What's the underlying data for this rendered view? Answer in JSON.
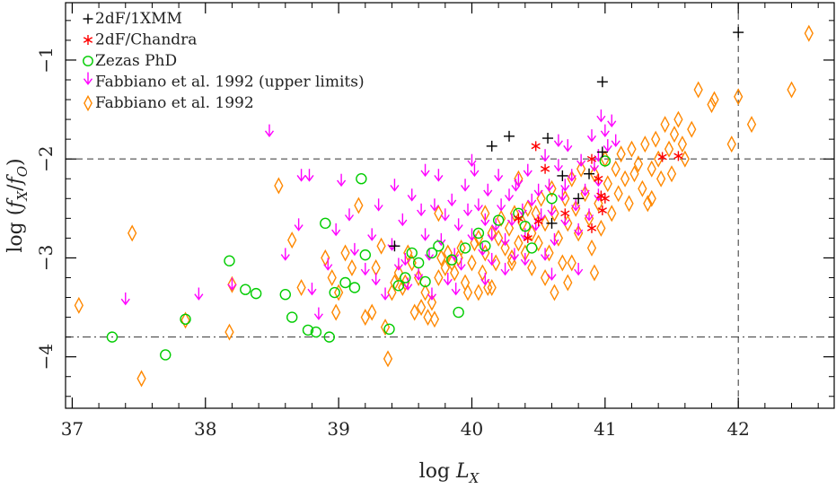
{
  "chart_data": {
    "type": "scatter",
    "xlabel": "log L_X",
    "ylabel": "log (f_X/f_O)",
    "xlim": [
      36.95,
      42.72
    ],
    "ylim": [
      -4.52,
      -0.42
    ],
    "xticks": [
      37,
      38,
      39,
      40,
      41,
      42
    ],
    "yticks": [
      -1,
      -2,
      -3,
      -4
    ],
    "grid": false,
    "legend_position": "top-left",
    "reference_lines": [
      {
        "orientation": "horizontal",
        "value": -2,
        "style": "dashed"
      },
      {
        "orientation": "horizontal",
        "value": -3.8,
        "style": "dash-dot"
      },
      {
        "orientation": "vertical",
        "value": 42,
        "style": "dashed"
      }
    ],
    "series": [
      {
        "name": "+2dF/1XMM",
        "legend_label": "+2dF/1XMM",
        "marker": "plus",
        "color": "#000000",
        "points": [
          [
            42.0,
            -0.72
          ],
          [
            40.98,
            -1.22
          ],
          [
            40.15,
            -1.87
          ],
          [
            40.28,
            -1.77
          ],
          [
            40.57,
            -1.79
          ],
          [
            40.68,
            -2.17
          ],
          [
            40.88,
            -2.15
          ],
          [
            40.98,
            -1.93
          ],
          [
            39.42,
            -2.88
          ],
          [
            40.8,
            -2.4
          ],
          [
            40.6,
            -2.65
          ]
        ]
      },
      {
        "name": "2dF/Chandra",
        "legend_label": "*2dF/Chandra",
        "marker": "asterisk",
        "color": "#ff0000",
        "points": [
          [
            40.48,
            -1.87
          ],
          [
            40.55,
            -2.1
          ],
          [
            40.9,
            -2.0
          ],
          [
            40.95,
            -2.2
          ],
          [
            40.97,
            -2.37
          ],
          [
            41.0,
            -2.4
          ],
          [
            40.98,
            -2.52
          ],
          [
            40.9,
            -2.7
          ],
          [
            40.5,
            -2.63
          ],
          [
            40.42,
            -2.8
          ],
          [
            41.43,
            -1.98
          ],
          [
            41.55,
            -1.97
          ],
          [
            40.35,
            -2.6
          ],
          [
            40.7,
            -2.55
          ]
        ]
      },
      {
        "name": "Zezas PhD",
        "legend_label": "Zezas PhD",
        "marker": "circle",
        "color": "#00cc00",
        "points": [
          [
            37.3,
            -3.8
          ],
          [
            37.7,
            -3.98
          ],
          [
            37.85,
            -3.62
          ],
          [
            38.18,
            -3.03
          ],
          [
            38.3,
            -3.32
          ],
          [
            38.38,
            -3.36
          ],
          [
            38.6,
            -3.37
          ],
          [
            38.65,
            -3.6
          ],
          [
            38.77,
            -3.73
          ],
          [
            38.83,
            -3.75
          ],
          [
            38.9,
            -2.65
          ],
          [
            38.93,
            -3.8
          ],
          [
            38.97,
            -3.35
          ],
          [
            39.05,
            -3.25
          ],
          [
            39.12,
            -3.3
          ],
          [
            39.17,
            -2.2
          ],
          [
            39.2,
            -2.97
          ],
          [
            39.38,
            -3.72
          ],
          [
            39.45,
            -3.28
          ],
          [
            39.5,
            -3.2
          ],
          [
            39.6,
            -3.05
          ],
          [
            39.65,
            -3.24
          ],
          [
            39.7,
            -2.95
          ],
          [
            39.75,
            -2.88
          ],
          [
            39.85,
            -3.02
          ],
          [
            39.9,
            -3.55
          ],
          [
            39.95,
            -2.9
          ],
          [
            40.05,
            -2.75
          ],
          [
            40.1,
            -2.88
          ],
          [
            40.2,
            -2.62
          ],
          [
            40.35,
            -2.55
          ],
          [
            40.4,
            -2.68
          ],
          [
            40.45,
            -2.9
          ],
          [
            41.0,
            -2.02
          ],
          [
            40.6,
            -2.4
          ],
          [
            39.55,
            -2.95
          ]
        ]
      },
      {
        "name": "Fabbiano et al. 1992 (upper limits)",
        "legend_label": "Fabbiano et al. 1992 (upper limits)",
        "marker": "arrow-down",
        "color": "#ff00ff",
        "points": [
          [
            37.4,
            -3.35
          ],
          [
            37.95,
            -3.3
          ],
          [
            38.2,
            -3.2
          ],
          [
            38.48,
            -1.65
          ],
          [
            38.6,
            -2.9
          ],
          [
            38.7,
            -2.6
          ],
          [
            38.72,
            -2.1
          ],
          [
            38.78,
            -2.1
          ],
          [
            38.8,
            -3.25
          ],
          [
            38.85,
            -3.5
          ],
          [
            38.92,
            -3.0
          ],
          [
            38.98,
            -2.65
          ],
          [
            39.02,
            -2.15
          ],
          [
            39.08,
            -2.5
          ],
          [
            39.12,
            -2.85
          ],
          [
            39.2,
            -3.05
          ],
          [
            39.25,
            -2.7
          ],
          [
            39.28,
            -3.15
          ],
          [
            39.3,
            -2.4
          ],
          [
            39.35,
            -3.3
          ],
          [
            39.4,
            -2.8
          ],
          [
            39.42,
            -2.2
          ],
          [
            39.45,
            -3.0
          ],
          [
            39.48,
            -2.55
          ],
          [
            39.5,
            -2.95
          ],
          [
            39.52,
            -3.2
          ],
          [
            39.55,
            -2.3
          ],
          [
            39.6,
            -3.1
          ],
          [
            39.62,
            -2.45
          ],
          [
            39.65,
            -2.7
          ],
          [
            39.68,
            -2.9
          ],
          [
            39.7,
            -3.3
          ],
          [
            39.72,
            -2.4
          ],
          [
            39.75,
            -2.1
          ],
          [
            39.77,
            -2.75
          ],
          [
            39.8,
            -2.5
          ],
          [
            39.82,
            -3.15
          ],
          [
            39.85,
            -2.35
          ],
          [
            39.87,
            -2.9
          ],
          [
            39.9,
            -2.6
          ],
          [
            39.92,
            -3.0
          ],
          [
            39.95,
            -2.2
          ],
          [
            39.97,
            -2.45
          ],
          [
            40.0,
            -2.7
          ],
          [
            40.02,
            -2.05
          ],
          [
            40.05,
            -2.4
          ],
          [
            40.08,
            -2.85
          ],
          [
            40.1,
            -2.55
          ],
          [
            40.12,
            -2.25
          ],
          [
            40.15,
            -2.95
          ],
          [
            40.18,
            -2.6
          ],
          [
            40.2,
            -2.1
          ],
          [
            40.22,
            -2.4
          ],
          [
            40.25,
            -2.75
          ],
          [
            40.28,
            -2.3
          ],
          [
            40.3,
            -2.55
          ],
          [
            40.32,
            -2.9
          ],
          [
            40.35,
            -2.15
          ],
          [
            40.38,
            -2.45
          ],
          [
            40.4,
            -2.7
          ],
          [
            40.42,
            -2.05
          ],
          [
            40.45,
            -2.35
          ],
          [
            40.48,
            -2.6
          ],
          [
            40.5,
            -2.25
          ],
          [
            40.52,
            -2.5
          ],
          [
            40.55,
            -1.9
          ],
          [
            40.58,
            -2.2
          ],
          [
            40.6,
            -2.45
          ],
          [
            40.62,
            -2.75
          ],
          [
            40.65,
            -2.0
          ],
          [
            40.68,
            -2.3
          ],
          [
            40.7,
            -2.55
          ],
          [
            40.72,
            -1.8
          ],
          [
            40.75,
            -2.1
          ],
          [
            40.78,
            -2.4
          ],
          [
            40.8,
            -2.65
          ],
          [
            40.82,
            -1.95
          ],
          [
            40.85,
            -2.25
          ],
          [
            40.88,
            -2.5
          ],
          [
            40.9,
            -1.7
          ],
          [
            40.92,
            -2.0
          ],
          [
            40.95,
            -2.3
          ],
          [
            40.97,
            -1.5
          ],
          [
            41.0,
            -1.65
          ],
          [
            41.02,
            -1.8
          ],
          [
            41.05,
            -1.55
          ],
          [
            41.08,
            -1.75
          ],
          [
            40.95,
            -2.15
          ],
          [
            40.6,
            -3.1
          ],
          [
            40.8,
            -3.05
          ],
          [
            40.55,
            -2.9
          ],
          [
            40.4,
            -2.95
          ],
          [
            40.25,
            -3.05
          ],
          [
            40.1,
            -3.15
          ],
          [
            39.88,
            -3.25
          ],
          [
            40.7,
            -2.2
          ],
          [
            40.33,
            -2.2
          ],
          [
            40.15,
            -2.7
          ],
          [
            39.65,
            -2.05
          ],
          [
            40.95,
            -1.9
          ],
          [
            40.65,
            -1.75
          ],
          [
            40.0,
            -1.95
          ]
        ]
      },
      {
        "name": "Fabbiano et al. 1992",
        "legend_label": "Fabbiano et al. 1992",
        "marker": "diamond",
        "color": "#ff8800",
        "points": [
          [
            37.05,
            -3.48
          ],
          [
            37.45,
            -2.75
          ],
          [
            37.52,
            -4.22
          ],
          [
            37.85,
            -3.63
          ],
          [
            38.18,
            -3.75
          ],
          [
            38.2,
            -3.27
          ],
          [
            38.55,
            -2.27
          ],
          [
            38.65,
            -2.82
          ],
          [
            38.72,
            -3.3
          ],
          [
            38.9,
            -3.0
          ],
          [
            38.95,
            -3.2
          ],
          [
            38.98,
            -3.55
          ],
          [
            39.0,
            -3.35
          ],
          [
            39.05,
            -2.95
          ],
          [
            39.1,
            -3.1
          ],
          [
            39.15,
            -2.47
          ],
          [
            39.2,
            -3.6
          ],
          [
            39.25,
            -3.55
          ],
          [
            39.28,
            -3.1
          ],
          [
            39.32,
            -2.88
          ],
          [
            39.35,
            -3.7
          ],
          [
            39.37,
            -4.02
          ],
          [
            39.4,
            -3.35
          ],
          [
            39.42,
            -3.25
          ],
          [
            39.45,
            -3.15
          ],
          [
            39.48,
            -3.3
          ],
          [
            39.5,
            -3.25
          ],
          [
            39.52,
            -2.95
          ],
          [
            39.55,
            -3.05
          ],
          [
            39.57,
            -3.55
          ],
          [
            39.6,
            -3.2
          ],
          [
            39.62,
            -3.5
          ],
          [
            39.65,
            -3.35
          ],
          [
            39.67,
            -3.6
          ],
          [
            39.7,
            -3.45
          ],
          [
            39.72,
            -3.62
          ],
          [
            39.75,
            -3.2
          ],
          [
            39.77,
            -3.0
          ],
          [
            39.8,
            -3.1
          ],
          [
            39.82,
            -2.95
          ],
          [
            39.85,
            -3.05
          ],
          [
            39.87,
            -3.15
          ],
          [
            39.9,
            -3.0
          ],
          [
            39.92,
            -2.9
          ],
          [
            39.95,
            -3.25
          ],
          [
            39.97,
            -3.35
          ],
          [
            40.0,
            -3.05
          ],
          [
            40.02,
            -2.85
          ],
          [
            40.05,
            -3.35
          ],
          [
            40.08,
            -3.15
          ],
          [
            40.1,
            -2.95
          ],
          [
            40.12,
            -3.3
          ],
          [
            40.15,
            -2.75
          ],
          [
            40.18,
            -3.05
          ],
          [
            40.2,
            -2.8
          ],
          [
            40.22,
            -2.6
          ],
          [
            40.25,
            -2.9
          ],
          [
            40.28,
            -2.7
          ],
          [
            40.3,
            -3.05
          ],
          [
            40.32,
            -2.55
          ],
          [
            40.35,
            -2.85
          ],
          [
            40.38,
            -2.65
          ],
          [
            40.4,
            -2.95
          ],
          [
            40.42,
            -2.5
          ],
          [
            40.45,
            -2.75
          ],
          [
            40.48,
            -2.55
          ],
          [
            40.5,
            -2.85
          ],
          [
            40.52,
            -2.4
          ],
          [
            40.55,
            -2.65
          ],
          [
            40.58,
            -2.95
          ],
          [
            40.6,
            -2.3
          ],
          [
            40.62,
            -2.55
          ],
          [
            40.65,
            -2.8
          ],
          [
            40.68,
            -3.05
          ],
          [
            40.7,
            -2.4
          ],
          [
            40.72,
            -2.65
          ],
          [
            40.75,
            -2.2
          ],
          [
            40.78,
            -2.5
          ],
          [
            40.8,
            -2.75
          ],
          [
            40.82,
            -2.1
          ],
          [
            40.85,
            -2.35
          ],
          [
            40.88,
            -2.6
          ],
          [
            40.9,
            -2.9
          ],
          [
            40.92,
            -2.15
          ],
          [
            40.95,
            -2.45
          ],
          [
            40.97,
            -2.7
          ],
          [
            41.0,
            -2.0
          ],
          [
            41.02,
            -2.25
          ],
          [
            41.05,
            -2.55
          ],
          [
            41.08,
            -2.1
          ],
          [
            41.1,
            -2.35
          ],
          [
            41.12,
            -1.95
          ],
          [
            41.15,
            -2.2
          ],
          [
            41.18,
            -2.45
          ],
          [
            41.2,
            -1.9
          ],
          [
            41.22,
            -2.15
          ],
          [
            41.25,
            -2.05
          ],
          [
            41.28,
            -2.3
          ],
          [
            41.3,
            -1.85
          ],
          [
            41.32,
            -2.45
          ],
          [
            41.35,
            -2.1
          ],
          [
            41.38,
            -1.8
          ],
          [
            41.4,
            -2.0
          ],
          [
            41.42,
            -2.2
          ],
          [
            41.45,
            -1.65
          ],
          [
            41.48,
            -1.9
          ],
          [
            41.5,
            -2.15
          ],
          [
            41.52,
            -1.75
          ],
          [
            41.55,
            -1.6
          ],
          [
            41.58,
            -1.85
          ],
          [
            41.6,
            -2.0
          ],
          [
            41.65,
            -1.7
          ],
          [
            41.7,
            -1.3
          ],
          [
            41.8,
            -1.45
          ],
          [
            41.82,
            -1.4
          ],
          [
            41.95,
            -1.85
          ],
          [
            42.0,
            -1.37
          ],
          [
            42.1,
            -1.65
          ],
          [
            42.4,
            -1.3
          ],
          [
            42.53,
            -0.73
          ],
          [
            40.62,
            -3.35
          ],
          [
            40.72,
            -3.25
          ],
          [
            40.92,
            -3.15
          ],
          [
            40.3,
            -3.0
          ],
          [
            40.15,
            -3.3
          ],
          [
            40.45,
            -3.1
          ],
          [
            40.1,
            -2.55
          ],
          [
            39.75,
            -2.55
          ],
          [
            40.55,
            -3.2
          ],
          [
            40.75,
            -3.05
          ],
          [
            41.35,
            -2.4
          ],
          [
            40.05,
            -2.8
          ],
          [
            40.35,
            -2.2
          ]
        ]
      }
    ]
  }
}
